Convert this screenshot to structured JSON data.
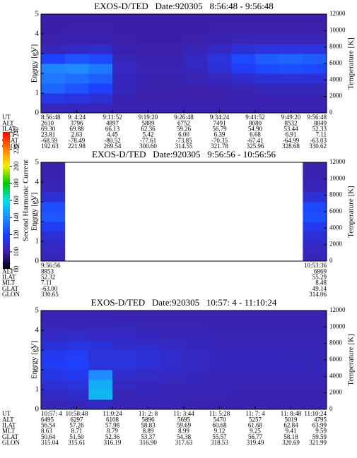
{
  "chart_data": [
    {
      "type": "heatmap",
      "title": "EXOS-D/TED   Date:920305   8:56:48 - 9:56:48",
      "ylabel": "Energy [eV]",
      "y2label": "Temperature [K]",
      "ylim": [
        0,
        5
      ],
      "yticks": [
        0,
        1,
        2,
        3,
        4,
        5
      ],
      "y2lim": [
        0,
        12000
      ],
      "y2ticks": [
        0,
        2000,
        4000,
        6000,
        8000,
        10000,
        12000
      ],
      "z": [
        [
          105,
          104,
          104,
          102,
          102,
          102,
          102,
          102,
          102,
          102,
          102,
          102
        ],
        [
          115,
          112,
          110,
          102,
          101,
          101,
          101,
          101,
          102,
          102,
          102,
          102
        ],
        [
          130,
          125,
          120,
          104,
          101,
          101,
          101,
          102,
          103,
          104,
          104,
          104
        ],
        [
          135,
          132,
          128,
          105,
          102,
          102,
          103,
          105,
          108,
          110,
          110,
          110
        ],
        [
          138,
          140,
          135,
          106,
          103,
          103,
          105,
          110,
          118,
          122,
          124,
          122
        ],
        [
          120,
          125,
          122,
          104,
          102,
          102,
          106,
          112,
          122,
          128,
          130,
          128
        ],
        [
          104,
          106,
          108,
          102,
          101,
          101,
          103,
          106,
          110,
          112,
          112,
          112
        ],
        [
          101,
          102,
          102,
          101,
          100,
          100,
          101,
          102,
          103,
          103,
          103,
          103
        ],
        [
          100,
          101,
          101,
          100,
          100,
          100,
          100,
          101,
          101,
          101,
          101,
          101
        ],
        [
          100,
          100,
          100,
          100,
          100,
          100,
          100,
          100,
          100,
          100,
          100,
          100
        ]
      ],
      "table": {
        "row_labels": [
          "UT",
          "ALT",
          "ILAT",
          "MLT",
          "GLAT",
          "GLON"
        ],
        "rows": [
          [
            "8:56:48",
            "9: 4:24",
            "9:11:52",
            "9:19:20",
            "9:26:48",
            "9:34:24",
            "9:41:52",
            "9:49:20",
            "9:56:48"
          ],
          [
            "2610",
            "3796",
            "4897",
            "5889",
            "6752",
            "7491",
            "8080",
            "8532",
            "8849"
          ],
          [
            "69.30",
            "69.88",
            "66.13",
            "62.36",
            "59.26",
            "56.79",
            "54.90",
            "53.44",
            "52.33"
          ],
          [
            "23.81",
            "2.63",
            "4.45",
            "5.42",
            "6.00",
            "6.39",
            "6.68",
            "6.91",
            "7.11"
          ],
          [
            "-68.59",
            "-78.49",
            "-80.52",
            "-77.61",
            "-73.85",
            "-70.35",
            "-67.41",
            "-64.99",
            "-63.03"
          ],
          [
            "192.63",
            "221.98",
            "269.54",
            "300.60",
            "314.55",
            "321.78",
            "325.96",
            "328.68",
            "330.62"
          ]
        ]
      }
    },
    {
      "type": "heatmap",
      "title": "EXOS-D/TED   Date:920305   9:56:56 - 10:56:56",
      "ylabel": "Energy [eV]",
      "y2label": "Temperature [K]",
      "ylim": [
        0,
        5
      ],
      "yticks": [
        0,
        1,
        2,
        3,
        4,
        5
      ],
      "y2lim": [
        0,
        12000
      ],
      "y2ticks": [
        0,
        2000,
        4000,
        6000,
        8000,
        10000,
        12000
      ],
      "z": [
        [
          104,
          null,
          null,
          null,
          null,
          null,
          null,
          null,
          null,
          null,
          null,
          104
        ],
        [
          106,
          null,
          null,
          null,
          null,
          null,
          null,
          null,
          null,
          null,
          null,
          106
        ],
        [
          110,
          null,
          null,
          null,
          null,
          null,
          null,
          null,
          null,
          null,
          null,
          110
        ],
        [
          118,
          null,
          null,
          null,
          null,
          null,
          null,
          null,
          null,
          null,
          null,
          116
        ],
        [
          126,
          null,
          null,
          null,
          null,
          null,
          null,
          null,
          null,
          null,
          null,
          124
        ],
        [
          124,
          null,
          null,
          null,
          null,
          null,
          null,
          null,
          null,
          null,
          null,
          122
        ],
        [
          110,
          null,
          null,
          null,
          null,
          null,
          null,
          null,
          null,
          null,
          null,
          110
        ],
        [
          104,
          null,
          null,
          null,
          null,
          null,
          null,
          null,
          null,
          null,
          null,
          104
        ],
        [
          102,
          null,
          null,
          null,
          null,
          null,
          null,
          null,
          null,
          null,
          null,
          102
        ],
        [
          101,
          null,
          null,
          null,
          null,
          null,
          null,
          null,
          null,
          null,
          null,
          101
        ]
      ],
      "table": {
        "row_labels": [
          "UT",
          "ALT",
          "ILAT",
          "MLT",
          "GLAT",
          "GLON"
        ],
        "rows": [
          [
            "9:56:56",
            "10:53:36"
          ],
          [
            "8853",
            "6869"
          ],
          [
            "52.32",
            "55.29"
          ],
          [
            "7.11",
            "8.48"
          ],
          [
            "-63.00",
            "49.14"
          ],
          [
            "330.65",
            "314.06"
          ]
        ]
      }
    },
    {
      "type": "heatmap",
      "title": "EXOS-D/TED   Date:920305   10:57: 4 - 11:10:24",
      "ylabel": "Energy [eV]",
      "y2label": "Temperature [K]",
      "ylim": [
        0,
        5
      ],
      "yticks": [
        0,
        1,
        2,
        3,
        4,
        5
      ],
      "y2lim": [
        0,
        12000
      ],
      "y2ticks": [
        0,
        2000,
        4000,
        6000,
        8000,
        10000,
        12000
      ],
      "z": [
        [
          104,
          104,
          106,
          103,
          103,
          103,
          102,
          102,
          102,
          102,
          102,
          102
        ],
        [
          106,
          108,
          150,
          104,
          104,
          103,
          103,
          103,
          102,
          102,
          102,
          102
        ],
        [
          110,
          112,
          148,
          106,
          105,
          104,
          104,
          103,
          103,
          103,
          103,
          103
        ],
        [
          114,
          116,
          140,
          108,
          107,
          106,
          105,
          104,
          104,
          104,
          104,
          104
        ],
        [
          118,
          120,
          112,
          112,
          110,
          108,
          106,
          105,
          105,
          105,
          105,
          104
        ],
        [
          116,
          118,
          112,
          112,
          110,
          108,
          106,
          105,
          105,
          105,
          104,
          104
        ],
        [
          110,
          112,
          110,
          108,
          108,
          106,
          105,
          104,
          104,
          104,
          104,
          103
        ],
        [
          106,
          107,
          106,
          106,
          105,
          104,
          104,
          103,
          103,
          103,
          103,
          103
        ],
        [
          104,
          104,
          104,
          104,
          103,
          103,
          103,
          102,
          102,
          102,
          102,
          102
        ],
        [
          103,
          103,
          103,
          102,
          102,
          102,
          102,
          102,
          102,
          102,
          102,
          102
        ]
      ],
      "table": {
        "row_labels": [
          "UT",
          "ALT",
          "ILAT",
          "MLT",
          "GLAT",
          "GLON"
        ],
        "rows": [
          [
            "10:57: 4",
            "10:58:48",
            "11:0:24",
            "11: 2: 8",
            "11: 3:44",
            "11: 5:28",
            "11: 7: 4",
            "11: 8:48",
            "11:10:24"
          ],
          [
            "6495",
            "6297",
            "6108",
            "5896",
            "5695",
            "5470",
            "5257",
            "5019",
            "4795"
          ],
          [
            "56.54",
            "57.26",
            "57.98",
            "58.83",
            "59.69",
            "60.68",
            "61.68",
            "62.84",
            "63.99"
          ],
          [
            "8.63",
            "8.71",
            "8.79",
            "8.89",
            "8.99",
            "9.12",
            "9.25",
            "9.41",
            "9.59"
          ],
          [
            "50.64",
            "51.50",
            "52.36",
            "53.37",
            "54.38",
            "55.57",
            "56.77",
            "58.18",
            "59.59"
          ],
          [
            "315.04",
            "315.61",
            "316.19",
            "316.90",
            "317.63",
            "318.53",
            "319.49",
            "320.69",
            "321.99"
          ]
        ]
      }
    },
    {
      "type": "colorbar",
      "label": "Second Harmonic Current",
      "ticks": [
        80,
        100,
        120,
        140,
        160,
        180,
        200,
        220,
        240
      ],
      "colors": [
        "#000000",
        "#3c1fa8",
        "#1e40ff",
        "#1e8cff",
        "#00e0e0",
        "#00c800",
        "#f0f000",
        "#ff8000",
        "#ff0000"
      ]
    }
  ]
}
